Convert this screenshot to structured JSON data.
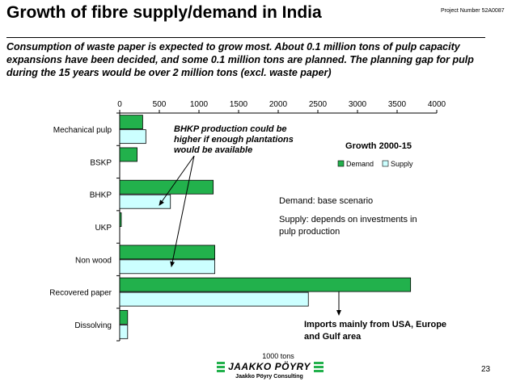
{
  "slide": {
    "title": "Growth of fibre supply/demand in India",
    "project_number": "Project Number 52A0087",
    "intro_text": "Consumption of waste paper is expected to grow most. About 0.1 million tons of pulp capacity expansions have been decided, and some 0.1 million tons are planned.  The planning gap for pulp during the 15 years would be over 2 million tons (excl. waste paper)",
    "page_number": "23"
  },
  "logo": {
    "name": "JAAKKO PÖYRY",
    "subtitle": "Jaakko Pöyry Consulting"
  },
  "colors": {
    "demand": "#22b14c",
    "supply": "#ccffff",
    "stroke": "#000000"
  },
  "chart_data": {
    "type": "bar",
    "orientation": "horizontal",
    "categories": [
      "Mechanical pulp",
      "BSKP",
      "BHKP",
      "UKP",
      "Non wood",
      "Recovered paper",
      "Dissolving"
    ],
    "series": [
      {
        "name": "Demand",
        "values": [
          290,
          220,
          1180,
          20,
          1200,
          3670,
          100
        ]
      },
      {
        "name": "Supply",
        "values": [
          330,
          0,
          640,
          0,
          1200,
          2380,
          100
        ]
      }
    ],
    "xlim": [
      0,
      4000
    ],
    "xticks": [
      0,
      500,
      1000,
      1500,
      2000,
      2500,
      3000,
      3500,
      4000
    ],
    "xtick_labels": [
      "0",
      "500",
      "1000",
      "1500",
      "2000",
      "2500",
      "3000",
      "3500",
      "4000"
    ],
    "xaxis_position": "top",
    "xlabel": "1000 tons",
    "legend": {
      "title": "Growth 2000-15",
      "entries": [
        "Demand",
        "Supply"
      ],
      "placement": "right"
    },
    "annotations": {
      "bhkp_note": [
        "BHKP production could be",
        "higher if enough plantations",
        "would be available"
      ],
      "scenario_note": [
        "Demand: base scenario"
      ],
      "supply_note": [
        "Supply: depends on investments in",
        "pulp production"
      ],
      "imports_note": [
        "Imports mainly from USA, Europe",
        "and Gulf area"
      ]
    }
  }
}
